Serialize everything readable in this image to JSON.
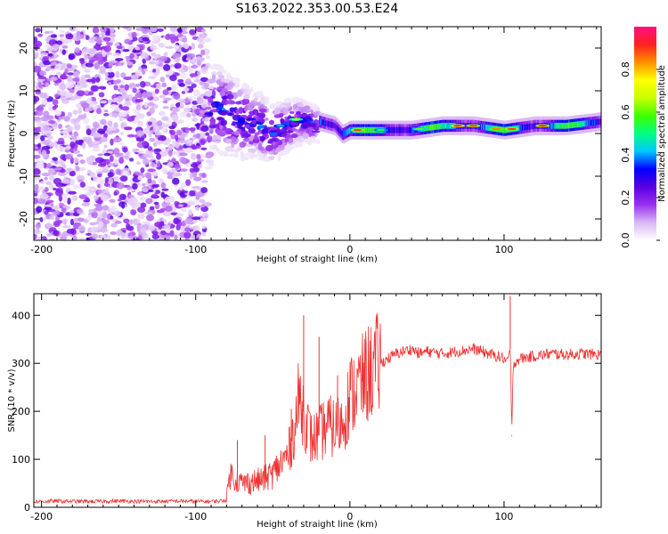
{
  "title": "S163.2022.353.00.53.E24",
  "chart_data": [
    {
      "type": "heatmap",
      "xlabel": "Height of straight line (km)",
      "ylabel": "Frequency (Hz)",
      "xlim": [
        -205,
        163
      ],
      "ylim": [
        -25,
        25
      ],
      "x_ticks": [
        -200,
        -100,
        0,
        100
      ],
      "y_ticks": [
        -20,
        -10,
        0,
        10,
        20
      ],
      "colorbar": {
        "label": "Normalized spectral amplitude",
        "range": [
          0,
          1
        ],
        "ticks": [
          "0.0",
          "0.2",
          "0.4",
          "0.6",
          "0.8"
        ],
        "colors": [
          "#ffffff",
          "#d9b8f5",
          "#9b30ef",
          "#5a00e0",
          "#0000ff",
          "#00c8ff",
          "#00ff80",
          "#40ff00",
          "#c8ff00",
          "#ffff00",
          "#ff9000",
          "#ff2020",
          "#ff1080"
        ]
      },
      "regions": [
        {
          "x_range": [
            -205,
            -92
          ],
          "freq_range": [
            -25,
            25
          ],
          "description_level": 0.1
        },
        {
          "x_range": [
            -92,
            -20
          ],
          "freq_range": [
            -10,
            12
          ],
          "description_level": 0.3
        },
        {
          "x_range": [
            -20,
            163
          ],
          "freq_range": [
            -1,
            3
          ],
          "description_level": 0.6
        }
      ],
      "ridge": {
        "x": [
          -90,
          -80,
          -70,
          -60,
          -50,
          -40,
          -30,
          -20,
          -10,
          -5,
          0,
          10,
          20,
          40,
          60,
          80,
          100,
          120,
          140,
          163
        ],
        "freq": [
          6,
          5,
          3,
          2,
          0,
          2,
          3,
          2,
          1,
          -1,
          0,
          0,
          0,
          0,
          1,
          1,
          0,
          1,
          1,
          2
        ]
      }
    },
    {
      "type": "line",
      "xlabel": "Height of straight line (km)",
      "ylabel": "SNR (10 * v/v)",
      "xlim": [
        -205,
        163
      ],
      "ylim": [
        0,
        445
      ],
      "x_ticks": [
        -200,
        -100,
        0,
        100
      ],
      "y_ticks": [
        0,
        100,
        200,
        300,
        400
      ],
      "series": [
        {
          "color": "#ee3333",
          "x": [
            -205,
            -190,
            -170,
            -150,
            -130,
            -110,
            -95,
            -85,
            -80,
            -78,
            -70,
            -60,
            -55,
            -50,
            -45,
            -40,
            -35,
            -33,
            -30,
            -25,
            -20,
            -15,
            -10,
            -5,
            0,
            5,
            10,
            15,
            20,
            25,
            30,
            35,
            40,
            45,
            50,
            60,
            70,
            80,
            90,
            95,
            100,
            102,
            104,
            105,
            106,
            110,
            120,
            130,
            140,
            150,
            163
          ],
          "y": [
            12,
            13,
            12,
            13,
            12,
            13,
            12,
            13,
            15,
            70,
            50,
            55,
            60,
            70,
            90,
            110,
            180,
            230,
            200,
            140,
            150,
            170,
            165,
            175,
            230,
            250,
            270,
            290,
            300,
            310,
            320,
            325,
            330,
            320,
            325,
            320,
            325,
            330,
            320,
            315,
            310,
            300,
            330,
            150,
            300,
            310,
            315,
            320,
            318,
            320,
            318
          ]
        }
      ],
      "spikes": [
        {
          "x": -73,
          "y": 140
        },
        {
          "x": -55,
          "y": 150
        },
        {
          "x": -38,
          "y": 205
        },
        {
          "x": -30,
          "y": 400
        },
        {
          "x": -20,
          "y": 355
        },
        {
          "x": -8,
          "y": 275
        },
        {
          "x": 8,
          "y": 320
        },
        {
          "x": 104,
          "y": 440
        },
        {
          "x": 105,
          "y": 148
        }
      ]
    }
  ]
}
